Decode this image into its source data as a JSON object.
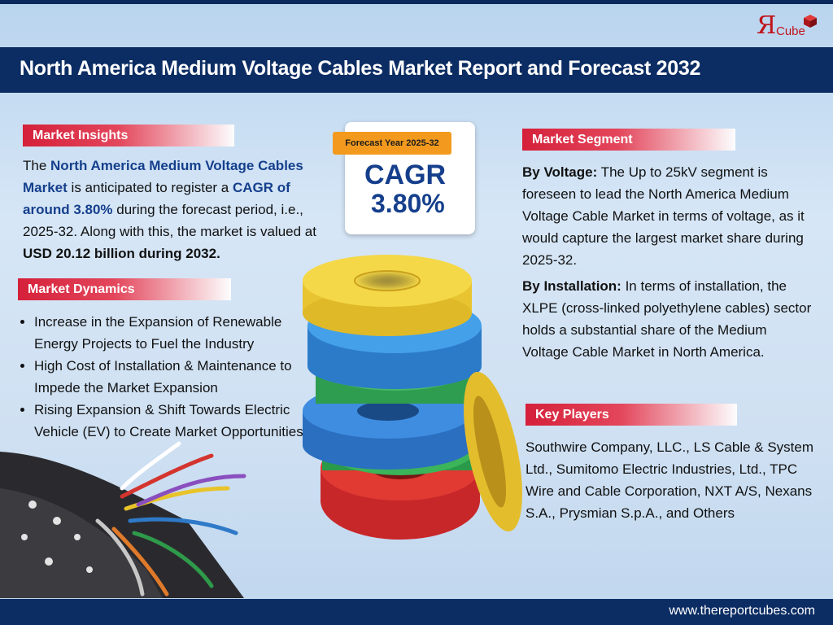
{
  "logo": {
    "mark": "Я",
    "text": "Cube"
  },
  "title": "North America Medium Voltage Cables Market Report and Forecast 2032",
  "insights": {
    "label": "Market Insights",
    "p1": "The ",
    "h1": "North America Medium Voltage Cables Market",
    "p2": " is anticipated to register a ",
    "h2": "CAGR of around 3.80%",
    "p3": " during the forecast period, i.e., 2025-32. Along with this, the market is valued at ",
    "h3": "USD 20.12 billion during 2032."
  },
  "cagr": {
    "tag": "Forecast Year 2025-32",
    "word": "CAGR",
    "value": "3.80%"
  },
  "dynamics": {
    "label": "Market Dynamics",
    "items": [
      "Increase in the Expansion of Renewable Energy Projects to Fuel the Industry",
      "High Cost of Installation & Maintenance to Impede the Market Expansion",
      "Rising Expansion & Shift Towards Electric Vehicle (EV) to Create Market Opportunities"
    ]
  },
  "segment": {
    "label": "Market Segment",
    "voltage_head": "By Voltage:",
    "voltage_text": " The Up to 25kV segment is foreseen to lead the North America Medium Voltage Cable Market in terms of voltage, as it would capture the largest market share during 2025-32.",
    "install_head": "By Installation:",
    "install_text": " In terms of installation, the XLPE (cross-linked polyethylene cables) sector holds a substantial share of the Medium Voltage Cable Market in North America."
  },
  "players": {
    "label": "Key Players",
    "text": "Southwire Company, LLC., LS Cable & System Ltd., Sumitomo Electric Industries, Ltd., TPC Wire and Cable Corporation, NXT A/S, Nexans S.A., Prysmian S.p.A., and Others"
  },
  "footer": {
    "url": "www.thereportcubes.com"
  },
  "colors": {
    "navy": "#0c2d63",
    "accent_red": "#d5203a",
    "highlight_blue": "#153f8c",
    "tag_orange": "#f39a1e"
  }
}
